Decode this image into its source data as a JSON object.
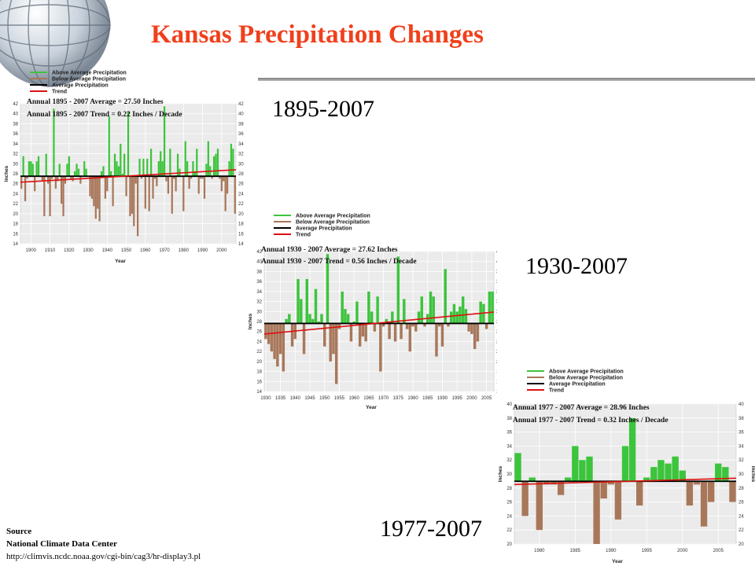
{
  "slide": {
    "title": "Kansas Precipitation Changes",
    "source": {
      "heading": "Source",
      "org": "National Climate Data Center",
      "url": "http://climvis.ncdc.noaa.gov/cgi-bin/cag3/hr-display3.pl"
    },
    "colors": {
      "title": "#f0401c",
      "above": "#3cc43c",
      "below": "#a8775a",
      "average": "#000000",
      "trend": "#dd1111"
    }
  },
  "chart_data": [
    {
      "type": "bar",
      "period_label": "1895-2007",
      "legend": [
        "Above Average Precipitation",
        "Below Average Precipitation",
        "Average Precipitation",
        "Trend"
      ],
      "annotations": [
        "Annual 1895 - 2007 Average = 27.50 Inches",
        "Annual 1895 - 2007 Trend = 0.22 Inches / Decade"
      ],
      "ylabel": "Inches",
      "xlabel": "Year",
      "ylim": [
        14,
        42
      ],
      "yticks": [
        14,
        16,
        18,
        20,
        22,
        24,
        26,
        28,
        30,
        32,
        34,
        36,
        38,
        40,
        42
      ],
      "xticks": [
        1900,
        1910,
        1920,
        1930,
        1940,
        1950,
        1960,
        1970,
        1980,
        1990,
        2000
      ],
      "xticklabels": [
        "1900",
        "1910",
        "1920",
        "1930",
        "1940",
        "1950",
        "1960",
        "1970",
        "1980",
        "1990",
        "2000"
      ],
      "xlim": [
        1894.5,
        2007.5
      ],
      "average": 27.5,
      "trend": [
        26.3,
        28.8
      ],
      "x": [
        1895,
        1896,
        1897,
        1898,
        1899,
        1900,
        1901,
        1902,
        1903,
        1904,
        1905,
        1906,
        1907,
        1908,
        1909,
        1910,
        1911,
        1912,
        1913,
        1914,
        1915,
        1916,
        1917,
        1918,
        1919,
        1920,
        1921,
        1922,
        1923,
        1924,
        1925,
        1926,
        1927,
        1928,
        1929,
        1930,
        1931,
        1932,
        1933,
        1934,
        1935,
        1936,
        1937,
        1938,
        1939,
        1940,
        1941,
        1942,
        1943,
        1944,
        1945,
        1946,
        1947,
        1948,
        1949,
        1950,
        1951,
        1952,
        1953,
        1954,
        1955,
        1956,
        1957,
        1958,
        1959,
        1960,
        1961,
        1962,
        1963,
        1964,
        1965,
        1966,
        1967,
        1968,
        1969,
        1970,
        1971,
        1972,
        1973,
        1974,
        1975,
        1976,
        1977,
        1978,
        1979,
        1980,
        1981,
        1982,
        1983,
        1984,
        1985,
        1986,
        1987,
        1988,
        1989,
        1990,
        1991,
        1992,
        1993,
        1994,
        1995,
        1996,
        1997,
        1998,
        1999,
        2000,
        2001,
        2002,
        2003,
        2004,
        2005,
        2006,
        2007
      ],
      "values": [
        25,
        31.5,
        22.5,
        27,
        30.5,
        30.5,
        30,
        24.5,
        30.5,
        31.5,
        27.5,
        26.5,
        19.5,
        32,
        26,
        19.5,
        27,
        41,
        25,
        26.5,
        30,
        22,
        19.5,
        26,
        30,
        31.5,
        27,
        26.5,
        28.5,
        30,
        29,
        26,
        27.5,
        30.5,
        29,
        27.5,
        23.5,
        23,
        21.5,
        19,
        21,
        18.5,
        28.5,
        29.5,
        23,
        24.5,
        39.5,
        28.5,
        21.5,
        32,
        30.5,
        29.5,
        34,
        28,
        32,
        23.5,
        40.5,
        19.5,
        20,
        17.5,
        26,
        15.5,
        31,
        27,
        31,
        21,
        31,
        20.5,
        33,
        23,
        27,
        25.5,
        30.5,
        32.5,
        30.5,
        41.5,
        26.5,
        24,
        33,
        20,
        27,
        24.5,
        32,
        29,
        27.5,
        20.5,
        34.5,
        30.5,
        25,
        27,
        30.5,
        28.5,
        33,
        24,
        27,
        27,
        23,
        30,
        34.5,
        29.5,
        27,
        31.5,
        32,
        33,
        27,
        24.5,
        26.5,
        20.5,
        24,
        30.5,
        34,
        33,
        20
      ]
    },
    {
      "type": "bar",
      "period_label": "1930-2007",
      "legend": [
        "Above Average Precipitation",
        "Below Average Precipitation",
        "Average Precipitation",
        "Trend"
      ],
      "annotations": [
        "Annual 1930 - 2007 Average = 27.62 Inches",
        "Annual 1930 - 2007 Trend = 0.56 Inches / Decade"
      ],
      "ylabel": "Inches",
      "xlabel": "Year",
      "ylim": [
        14,
        42
      ],
      "yticks": [
        14,
        16,
        18,
        20,
        22,
        24,
        26,
        28,
        30,
        32,
        34,
        36,
        38,
        40,
        42
      ],
      "xticks": [
        1930,
        1935,
        1940,
        1945,
        1950,
        1955,
        1960,
        1965,
        1970,
        1975,
        1980,
        1985,
        1990,
        1995,
        2000,
        2005
      ],
      "xticklabels": [
        "1930",
        "1935",
        "1940",
        "1945",
        "1950",
        "1955",
        "1960",
        "1965",
        "1970",
        "1975",
        "1980",
        "1985",
        "1990",
        "1995",
        "2000",
        "2005"
      ],
      "xlim": [
        1929.5,
        2007.5
      ],
      "average": 27.62,
      "trend": [
        25.5,
        29.9
      ],
      "x": [
        1930,
        1931,
        1932,
        1933,
        1934,
        1935,
        1936,
        1937,
        1938,
        1939,
        1940,
        1941,
        1942,
        1943,
        1944,
        1945,
        1946,
        1947,
        1948,
        1949,
        1950,
        1951,
        1952,
        1953,
        1954,
        1955,
        1956,
        1957,
        1958,
        1959,
        1960,
        1961,
        1962,
        1963,
        1964,
        1965,
        1966,
        1967,
        1968,
        1969,
        1970,
        1971,
        1972,
        1973,
        1974,
        1975,
        1976,
        1977,
        1978,
        1979,
        1980,
        1981,
        1982,
        1983,
        1984,
        1985,
        1986,
        1987,
        1988,
        1989,
        1990,
        1991,
        1992,
        1993,
        1994,
        1995,
        1996,
        1997,
        1998,
        1999,
        2000,
        2001,
        2002,
        2003,
        2004,
        2005,
        2006,
        2007
      ],
      "values": [
        24.5,
        23.5,
        22,
        20.5,
        19,
        21.5,
        18,
        28.5,
        29.5,
        23,
        24.5,
        36.5,
        32.5,
        21.5,
        36.5,
        29.5,
        28.5,
        34.5,
        28,
        29.5,
        23,
        41.5,
        20,
        21.5,
        15.5,
        26.5,
        34,
        30.5,
        29.5,
        24,
        28,
        32,
        23,
        25,
        24,
        34,
        30,
        26,
        33,
        18,
        27,
        28.5,
        24.5,
        30,
        24,
        41,
        24.5,
        32.5,
        26.5,
        22,
        27,
        26,
        30,
        33,
        27,
        29.5,
        34,
        33,
        21,
        27,
        23,
        38.5,
        27,
        30,
        31.5,
        30,
        31,
        33,
        30.5,
        26,
        25.5,
        22.5,
        24,
        32,
        31.5,
        26.5,
        34,
        34
      ]
    },
    {
      "type": "bar",
      "period_label": "1977-2007",
      "legend": [
        "Above Average Precipitation",
        "Below Average Precipitation",
        "Average Precipitation",
        "Trend"
      ],
      "annotations": [
        "Annual 1977 - 2007 Average = 28.96 Inches",
        "Annual 1977 - 2007 Trend = 0.32 Inches / Decade"
      ],
      "ylabel": "Inches",
      "xlabel": "Year",
      "ylim": [
        20,
        40
      ],
      "yticks": [
        20,
        22,
        24,
        26,
        28,
        30,
        32,
        34,
        36,
        38,
        40
      ],
      "xticks": [
        1980,
        1985,
        1990,
        1995,
        2000,
        2005
      ],
      "xticklabels": [
        "1980",
        "1985",
        "1990",
        "1995",
        "2000",
        "2005"
      ],
      "xlim": [
        1976.5,
        2007.5
      ],
      "average": 28.96,
      "trend": [
        28.5,
        29.4
      ],
      "x": [
        1977,
        1978,
        1979,
        1980,
        1981,
        1982,
        1983,
        1984,
        1985,
        1986,
        1987,
        1988,
        1989,
        1990,
        1991,
        1992,
        1993,
        1994,
        1995,
        1996,
        1997,
        1998,
        1999,
        2000,
        2001,
        2002,
        2003,
        2004,
        2005,
        2006,
        2007
      ],
      "values": [
        33,
        24,
        29.5,
        22,
        28.5,
        28.5,
        27,
        29.5,
        34,
        32,
        32.5,
        20,
        26.5,
        28.5,
        23.5,
        34,
        38,
        25.5,
        29.5,
        31,
        32,
        31.5,
        32.5,
        30.5,
        25.5,
        28.5,
        22.5,
        26,
        31.5,
        31,
        26
      ]
    }
  ]
}
